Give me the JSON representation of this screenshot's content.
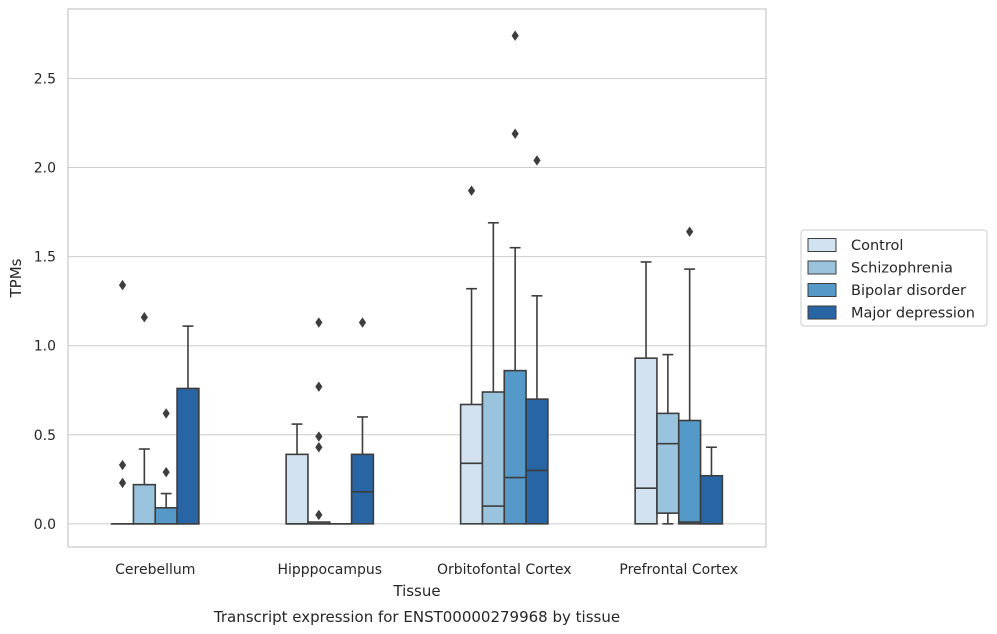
{
  "chart_data": {
    "type": "box",
    "title": "Transcript expression for ENST00000279968 by tissue",
    "xlabel": "Tissue",
    "ylabel": "TPMs",
    "ylim": [
      -0.13,
      2.89
    ],
    "yticks": [
      0.0,
      0.5,
      1.0,
      1.5,
      2.0,
      2.5
    ],
    "ytick_labels": [
      "0.0",
      "0.5",
      "1.0",
      "1.5",
      "2.0",
      "2.5"
    ],
    "grid": "horizontal",
    "legend_position": "right",
    "categories": [
      "Cerebellum",
      "Hipppocampus",
      "Orbitofontal Cortex",
      "Prefrontal Cortex"
    ],
    "series": [
      {
        "name": "Control",
        "color": "#d2e2f1",
        "boxes": [
          {
            "q1": 0.0,
            "median": 0.0,
            "q3": 0.0,
            "whisker_low": 0.0,
            "whisker_high": 0.0,
            "outliers": [
              0.23,
              0.33,
              1.34
            ]
          },
          {
            "q1": 0.0,
            "median": 0.0,
            "q3": 0.39,
            "whisker_low": 0.0,
            "whisker_high": 0.56,
            "outliers": []
          },
          {
            "q1": 0.0,
            "median": 0.34,
            "q3": 0.67,
            "whisker_low": 0.0,
            "whisker_high": 1.32,
            "outliers": [
              1.87
            ]
          },
          {
            "q1": 0.0,
            "median": 0.2,
            "q3": 0.93,
            "whisker_low": 0.0,
            "whisker_high": 1.47,
            "outliers": []
          }
        ]
      },
      {
        "name": "Schizophrenia",
        "color": "#9ac4de",
        "boxes": [
          {
            "q1": 0.0,
            "median": 0.0,
            "q3": 0.22,
            "whisker_low": 0.0,
            "whisker_high": 0.42,
            "outliers": [
              1.16
            ]
          },
          {
            "q1": 0.0,
            "median": 0.0,
            "q3": 0.01,
            "whisker_low": 0.0,
            "whisker_high": 0.01,
            "outliers": [
              0.05,
              0.43,
              0.49,
              0.77,
              1.13
            ]
          },
          {
            "q1": 0.0,
            "median": 0.1,
            "q3": 0.74,
            "whisker_low": 0.0,
            "whisker_high": 1.69,
            "outliers": []
          },
          {
            "q1": 0.06,
            "median": 0.45,
            "q3": 0.62,
            "whisker_low": 0.0,
            "whisker_high": 0.95,
            "outliers": []
          }
        ]
      },
      {
        "name": "Bipolar disorder",
        "color": "#5599c8",
        "boxes": [
          {
            "q1": 0.0,
            "median": 0.0,
            "q3": 0.09,
            "whisker_low": 0.0,
            "whisker_high": 0.17,
            "outliers": [
              0.29,
              0.62
            ]
          },
          {
            "q1": 0.0,
            "median": 0.0,
            "q3": 0.0,
            "whisker_low": 0.0,
            "whisker_high": 0.0,
            "outliers": []
          },
          {
            "q1": 0.0,
            "median": 0.26,
            "q3": 0.86,
            "whisker_low": 0.0,
            "whisker_high": 1.55,
            "outliers": [
              2.19,
              2.74
            ]
          },
          {
            "q1": 0.0,
            "median": 0.01,
            "q3": 0.58,
            "whisker_low": 0.0,
            "whisker_high": 1.43,
            "outliers": [
              1.64
            ]
          }
        ]
      },
      {
        "name": "Major depression",
        "color": "#2865a5",
        "boxes": [
          {
            "q1": 0.0,
            "median": 0.0,
            "q3": 0.76,
            "whisker_low": 0.0,
            "whisker_high": 1.11,
            "outliers": []
          },
          {
            "q1": 0.0,
            "median": 0.18,
            "q3": 0.39,
            "whisker_low": 0.0,
            "whisker_high": 0.6,
            "outliers": [
              1.13
            ]
          },
          {
            "q1": 0.0,
            "median": 0.3,
            "q3": 0.7,
            "whisker_low": 0.0,
            "whisker_high": 1.28,
            "outliers": [
              2.04
            ]
          },
          {
            "q1": 0.0,
            "median": 0.0,
            "q3": 0.27,
            "whisker_low": 0.0,
            "whisker_high": 0.43,
            "outliers": []
          }
        ]
      }
    ]
  }
}
